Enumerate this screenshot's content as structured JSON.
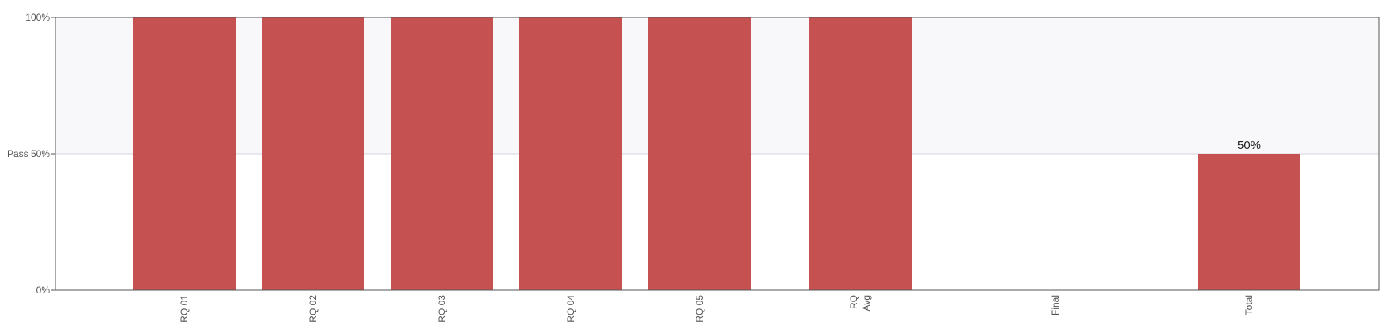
{
  "chart_data": {
    "type": "bar",
    "categories": [
      "RQ 01",
      "RQ 02",
      "RQ 03",
      "RQ 04",
      "RQ 05",
      "RQ Avg",
      "Final",
      "Total"
    ],
    "category_lines": [
      [
        "RQ 01"
      ],
      [
        "RQ 02"
      ],
      [
        "RQ 03"
      ],
      [
        "RQ 04"
      ],
      [
        "RQ 05"
      ],
      [
        "RQ",
        "Avg"
      ],
      [
        "Final"
      ],
      [
        "Total"
      ]
    ],
    "values": [
      100,
      100,
      100,
      100,
      100,
      100,
      0,
      50
    ],
    "data_labels": [
      "",
      "",
      "",
      "",
      "",
      "",
      "",
      "50%"
    ],
    "ylim": [
      0,
      100
    ],
    "yticks": [
      {
        "value": 0,
        "label": "0%"
      },
      {
        "value": 50,
        "label": "Pass 50%"
      },
      {
        "value": 100,
        "label": "100%"
      }
    ],
    "pass_threshold": 50,
    "title": "",
    "xlabel": "",
    "ylabel": "",
    "legend": "none",
    "grid": false,
    "colors": {
      "bar": "#c44a4a",
      "pass_band": "#f8f8fb",
      "axis": "#555555",
      "pass_line": "#d4d4dc"
    }
  }
}
